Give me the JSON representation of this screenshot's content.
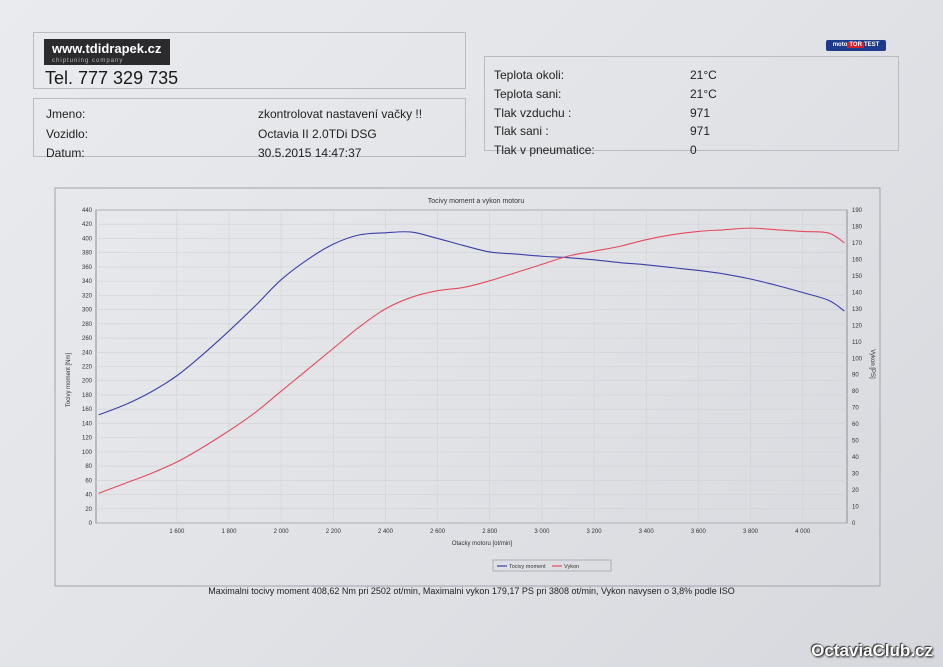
{
  "header": {
    "logo_text": "www.tdidrapek.cz",
    "logo_subtext": "chiptuning company",
    "brand_badge_left": "moto",
    "brand_badge_mid": "TOR",
    "brand_badge_right": "TEST",
    "tel": "Tel. 777 329 735"
  },
  "customer": {
    "rows": [
      {
        "label": "Jmeno:",
        "value": "zkontrolovat nastavení vačky !!"
      },
      {
        "label": "Vozidlo:",
        "value": "Octavia II 2.0TDi DSG"
      },
      {
        "label": "Datum:",
        "value": "30.5.2015 14:47:37"
      }
    ]
  },
  "conditions": {
    "rows": [
      {
        "label": "Teplota okoli:",
        "value": "21°C"
      },
      {
        "label": "Teplota sani:",
        "value": "21°C"
      },
      {
        "label": "Tlak vzduchu :",
        "value": "971"
      },
      {
        "label": "Tlak sani :",
        "value": "971"
      },
      {
        "label": "Tlak v pneumatice:",
        "value": "0"
      }
    ]
  },
  "summary": "Maximalni tocivy moment 408,62 Nm pri 2502 ot/min, Maximalni vykon 179,17 PS pri 3808 ot/min, Vykon navysen o 3,8% podle ISO",
  "watermark": "OctaviaClub.cz",
  "chart_data": {
    "type": "line",
    "title": "Tocivy moment a vykon motoru",
    "xlabel": "Otacky motoru [ot/min]",
    "ylabel": "Tocivy moment [Nm]",
    "y2label": "Vykon [PS]",
    "xlim": [
      1290,
      4170
    ],
    "ylim": [
      0,
      440
    ],
    "y2lim": [
      0,
      190
    ],
    "xticks": [
      1600,
      1800,
      2000,
      2200,
      2400,
      2600,
      2800,
      3000,
      3200,
      3400,
      3600,
      3800,
      4000
    ],
    "xtick_labels": [
      "1 600",
      "1 800",
      "2 000",
      "2 200",
      "2 400",
      "2 600",
      "2 800",
      "3 000",
      "3 200",
      "3 400",
      "3 600",
      "3 800",
      "4 000"
    ],
    "yticks": [
      0,
      20,
      40,
      60,
      80,
      100,
      120,
      140,
      160,
      180,
      200,
      220,
      240,
      260,
      280,
      300,
      320,
      340,
      360,
      380,
      400,
      420,
      440
    ],
    "y2ticks": [
      0,
      10,
      20,
      30,
      40,
      50,
      60,
      70,
      80,
      90,
      100,
      110,
      120,
      130,
      140,
      150,
      160,
      170,
      180,
      190
    ],
    "grid": true,
    "legend_position": "bottom-right",
    "series": [
      {
        "name": "Tocivy moment",
        "axis": "left",
        "color": "#3c3fa6",
        "x": [
          1300,
          1400,
          1500,
          1600,
          1700,
          1800,
          1900,
          2000,
          2100,
          2200,
          2300,
          2400,
          2500,
          2600,
          2700,
          2800,
          2900,
          3000,
          3100,
          3200,
          3300,
          3400,
          3500,
          3600,
          3700,
          3800,
          3900,
          4000,
          4100,
          4160
        ],
        "y": [
          152,
          166,
          184,
          207,
          237,
          270,
          305,
          342,
          370,
          392,
          405,
          408,
          409,
          400,
          390,
          381,
          378,
          375,
          373,
          370,
          366,
          363,
          359,
          355,
          350,
          343,
          334,
          324,
          313,
          298
        ]
      },
      {
        "name": "Vykon",
        "axis": "right",
        "color": "#e24c5c",
        "x": [
          1300,
          1400,
          1500,
          1600,
          1700,
          1800,
          1900,
          2000,
          2100,
          2200,
          2300,
          2400,
          2500,
          2600,
          2700,
          2800,
          2900,
          3000,
          3100,
          3200,
          3300,
          3400,
          3500,
          3600,
          3700,
          3800,
          3900,
          4000,
          4100,
          4160
        ],
        "y": [
          18,
          24,
          30,
          37,
          46,
          56,
          67,
          80,
          93,
          106,
          119,
          130,
          137,
          141,
          143,
          147,
          152,
          157,
          162,
          165,
          168,
          172,
          175,
          177,
          178,
          179,
          178,
          177,
          176,
          170
        ]
      }
    ]
  }
}
